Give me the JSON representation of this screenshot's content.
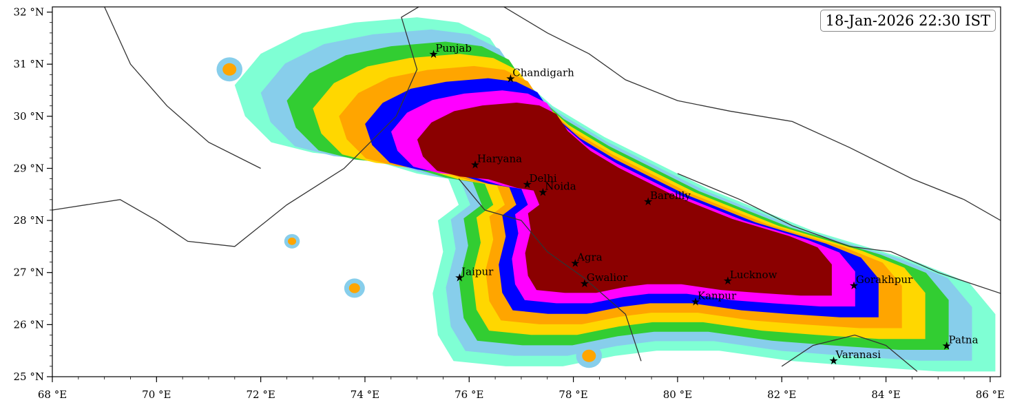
{
  "title": "18-Jan-2026 22:30 IST",
  "map": {
    "lon_range": [
      68,
      86.2
    ],
    "lat_range": [
      25,
      32.1
    ],
    "x_ticks": [
      {
        "value": 68,
        "label": "68 °E"
      },
      {
        "value": 70,
        "label": "70 °E"
      },
      {
        "value": 72,
        "label": "72 °E"
      },
      {
        "value": 74,
        "label": "74 °E"
      },
      {
        "value": 76,
        "label": "76 °E"
      },
      {
        "value": 78,
        "label": "78 °E"
      },
      {
        "value": 80,
        "label": "80 °E"
      },
      {
        "value": 82,
        "label": "82 °E"
      },
      {
        "value": 84,
        "label": "84 °E"
      },
      {
        "value": 86,
        "label": "86 °E"
      }
    ],
    "y_ticks": [
      {
        "value": 25,
        "label": "25 °N"
      },
      {
        "value": 26,
        "label": "26 °N"
      },
      {
        "value": 27,
        "label": "27 °N"
      },
      {
        "value": 28,
        "label": "28 °N"
      },
      {
        "value": 29,
        "label": "29 °N"
      },
      {
        "value": 30,
        "label": "30 °N"
      },
      {
        "value": 31,
        "label": "31 °N"
      },
      {
        "value": 32,
        "label": "32 °N"
      }
    ],
    "fill_colors": [
      "#7fffd4",
      "#87ceeb",
      "#32cd32",
      "#ffd700",
      "#ffa500",
      "#0000ff",
      "#ff00ff",
      "#8b0000"
    ],
    "border_color": "#333333"
  },
  "cities": [
    {
      "name": "Punjab",
      "lon": 75.3,
      "lat": 31.2
    },
    {
      "name": "Chandigarh",
      "lon": 76.78,
      "lat": 30.73
    },
    {
      "name": "Haryana",
      "lon": 76.1,
      "lat": 29.08
    },
    {
      "name": "Delhi",
      "lon": 77.1,
      "lat": 28.7
    },
    {
      "name": "Noida",
      "lon": 77.4,
      "lat": 28.55
    },
    {
      "name": "Bareilly",
      "lon": 79.42,
      "lat": 28.37
    },
    {
      "name": "Agra",
      "lon": 78.02,
      "lat": 27.19
    },
    {
      "name": "Jaipur",
      "lon": 75.8,
      "lat": 26.91
    },
    {
      "name": "Gwalior",
      "lon": 78.2,
      "lat": 26.8
    },
    {
      "name": "Lucknow",
      "lon": 80.95,
      "lat": 26.85
    },
    {
      "name": "Kanpur",
      "lon": 80.33,
      "lat": 26.45
    },
    {
      "name": "Gorakhpur",
      "lon": 83.37,
      "lat": 26.76
    },
    {
      "name": "Varanasi",
      "lon": 82.98,
      "lat": 25.32
    },
    {
      "name": "Patna",
      "lon": 85.15,
      "lat": 25.6
    }
  ]
}
